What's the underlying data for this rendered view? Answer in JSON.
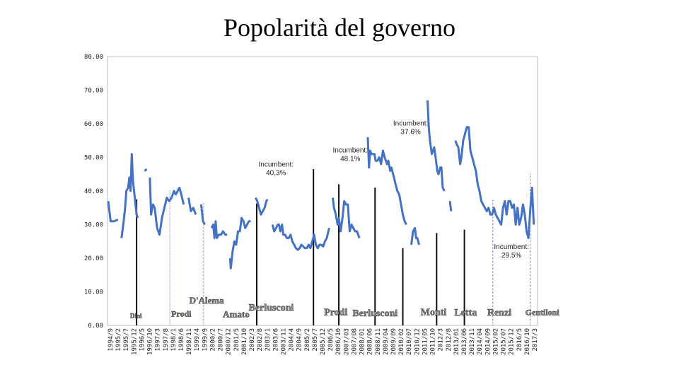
{
  "page": {
    "title": "Popolarità del governo"
  },
  "chart_data": {
    "type": "line",
    "title": "Popolarità del governo",
    "xlabel": "",
    "ylabel": "",
    "ylim": [
      0,
      80
    ],
    "yticks": [
      "0.00",
      "10.00",
      "20.00",
      "30.00",
      "40.00",
      "50.00",
      "60.00",
      "70.00",
      "80.00"
    ],
    "grid": false,
    "legend": "none",
    "color": "#4472c4",
    "x_tick_labels": [
      "1994/9",
      "1995/2",
      "1995/7",
      "1995/12",
      "1996/5",
      "1996/10",
      "1997/3",
      "1997/8",
      "1998/1",
      "1998/6",
      "1998/11",
      "1999/4",
      "1999/9",
      "2000/2",
      "2000/7",
      "2000/12",
      "2001/5",
      "2001/10",
      "2002/3",
      "2002/8",
      "2003/1",
      "2003/6",
      "2003/11",
      "2004/4",
      "2004/9",
      "2005/2",
      "2005/7",
      "2005/12",
      "2006/5",
      "2006/10",
      "2007/03",
      "2007/08",
      "2008/01",
      "2008/06",
      "2008/11",
      "2009/04",
      "2009/09",
      "2010/02",
      "2010/07",
      "2010/12",
      "2011/05",
      "2011/10",
      "2012/3",
      "2012/8",
      "2013/01",
      "2013/06",
      "2013/11",
      "2014/04",
      "2014/09",
      "2015/02",
      "2015/07",
      "2015/12",
      "2016/5",
      "2016/10",
      "2017/3"
    ],
    "series": [
      {
        "values": [
          [
            0,
            37
          ],
          [
            0.4,
            31
          ],
          [
            1,
            31
          ],
          [
            1.6,
            31.5
          ],
          [
            2,
            null
          ],
          [
            2.2,
            26
          ],
          [
            2.5,
            30
          ],
          [
            2.8,
            35
          ],
          [
            3,
            40
          ],
          [
            3.3,
            41
          ],
          [
            3.5,
            44
          ],
          [
            3.7,
            40
          ],
          [
            3.9,
            51
          ],
          [
            4.1,
            43
          ],
          [
            4.4,
            38
          ],
          [
            4.7,
            33
          ],
          [
            4.9,
            32
          ],
          [
            5,
            null
          ],
          [
            6,
            46
          ],
          [
            6.4,
            46.5
          ],
          [
            6.6,
            null
          ],
          [
            6.9,
            44
          ],
          [
            7.1,
            33
          ],
          [
            7.4,
            36
          ],
          [
            7.7,
            35
          ],
          [
            8.1,
            29
          ],
          [
            8.5,
            27
          ],
          [
            8.9,
            32
          ],
          [
            9.3,
            35
          ],
          [
            9.7,
            38
          ],
          [
            10.1,
            37
          ],
          [
            10.5,
            38
          ],
          [
            10.9,
            40
          ],
          [
            11.2,
            39
          ],
          [
            11.5,
            40
          ],
          [
            11.8,
            41
          ],
          [
            12.1,
            39
          ],
          [
            12.5,
            36
          ],
          [
            12.8,
            null
          ],
          [
            13.3,
            38
          ],
          [
            13.7,
            34
          ],
          [
            14.1,
            35
          ],
          [
            14.5,
            33
          ],
          [
            14.8,
            null
          ],
          [
            15.4,
            36
          ],
          [
            15.7,
            31
          ],
          [
            16,
            30
          ],
          [
            16.3,
            null
          ],
          [
            17.1,
            29
          ],
          [
            17.4,
            30
          ],
          [
            17.6,
            26
          ],
          [
            17.8,
            31
          ],
          [
            18,
            26
          ],
          [
            18.3,
            27
          ],
          [
            18.7,
            27
          ],
          [
            19,
            28
          ],
          [
            19.4,
            27
          ],
          [
            19.7,
            27
          ],
          [
            19.9,
            null
          ],
          [
            20.2,
            20
          ],
          [
            20.3,
            17
          ],
          [
            20.6,
            22
          ],
          [
            20.9,
            25
          ],
          [
            21.2,
            24
          ],
          [
            21.5,
            28
          ],
          [
            21.8,
            28
          ],
          [
            22.1,
            32
          ],
          [
            22.4,
            31
          ],
          [
            22.7,
            29
          ],
          [
            23,
            30
          ],
          [
            23.3,
            31
          ],
          [
            23.6,
            31
          ],
          [
            23.9,
            null
          ],
          [
            24.4,
            38
          ],
          [
            24.7,
            37
          ],
          [
            25,
            35
          ],
          [
            25.3,
            33
          ],
          [
            25.6,
            34
          ],
          [
            25.9,
            35
          ],
          [
            26.2,
            37
          ],
          [
            26.4,
            37.5
          ],
          [
            26.6,
            null
          ],
          [
            27.2,
            30
          ],
          [
            27.5,
            28
          ],
          [
            27.8,
            29
          ],
          [
            28.1,
            30
          ],
          [
            28.3,
            30
          ],
          [
            28.5,
            28
          ],
          [
            28.8,
            30
          ],
          [
            29,
            27
          ],
          [
            29.3,
            27
          ],
          [
            29.6,
            26
          ],
          [
            29.9,
            26
          ],
          [
            30.2,
            27
          ],
          [
            30.5,
            25
          ],
          [
            30.8,
            24
          ],
          [
            31.1,
            23
          ],
          [
            31.4,
            22.5
          ],
          [
            31.7,
            23
          ],
          [
            32,
            24
          ],
          [
            32.3,
            23.5
          ],
          [
            32.6,
            23
          ],
          [
            32.9,
            23
          ],
          [
            33.2,
            24
          ],
          [
            33.5,
            23
          ],
          [
            33.8,
            25
          ],
          [
            34.1,
            27
          ],
          [
            34.4,
            24
          ],
          [
            34.7,
            23
          ],
          [
            35,
            24
          ],
          [
            35.3,
            24
          ],
          [
            35.6,
            23.5
          ],
          [
            35.9,
            25
          ],
          [
            36.2,
            26
          ],
          [
            36.6,
            29
          ],
          [
            36.8,
            null
          ],
          [
            37.2,
            38
          ],
          [
            37.4,
            35
          ],
          [
            37.7,
            33
          ],
          [
            38,
            30
          ],
          [
            38.2,
            32
          ],
          [
            38.5,
            28
          ],
          [
            38.8,
            32
          ],
          [
            39.1,
            37
          ],
          [
            39.4,
            36
          ],
          [
            39.7,
            36
          ],
          [
            40,
            28
          ],
          [
            40.3,
            30
          ],
          [
            40.6,
            29
          ],
          [
            40.9,
            28
          ],
          [
            41.2,
            28
          ],
          [
            41.6,
            26
          ],
          [
            41.9,
            null
          ],
          [
            43,
            56
          ],
          [
            43.2,
            47
          ],
          [
            43.4,
            52
          ],
          [
            43.6,
            51
          ],
          [
            43.8,
            51
          ],
          [
            44.1,
            51
          ],
          [
            44.3,
            49
          ],
          [
            44.6,
            49
          ],
          [
            44.9,
            50
          ],
          [
            45.2,
            48
          ],
          [
            45.5,
            52
          ],
          [
            45.8,
            50
          ],
          [
            46,
            49
          ],
          [
            46.2,
            48
          ],
          [
            46.4,
            49
          ],
          [
            46.7,
            46
          ],
          [
            46.9,
            47
          ],
          [
            47.2,
            45
          ],
          [
            47.6,
            42
          ],
          [
            47.9,
            40
          ],
          [
            48.2,
            39
          ],
          [
            48.5,
            36
          ],
          [
            48.8,
            33
          ],
          [
            49.1,
            31
          ],
          [
            49.4,
            30
          ],
          [
            49.6,
            null
          ],
          [
            50.2,
            24
          ],
          [
            50.5,
            28
          ],
          [
            50.8,
            29
          ],
          [
            51,
            26
          ],
          [
            51.2,
            26
          ],
          [
            51.5,
            24
          ],
          [
            51.8,
            null
          ],
          [
            52.9,
            67
          ],
          [
            53.1,
            59
          ],
          [
            53.3,
            55
          ],
          [
            53.6,
            51
          ],
          [
            53.8,
            52
          ],
          [
            54,
            53
          ],
          [
            54.3,
            49
          ],
          [
            54.5,
            46
          ],
          [
            54.7,
            45
          ],
          [
            55,
            47
          ],
          [
            55.2,
            47
          ],
          [
            55.4,
            41
          ],
          [
            55.7,
            40
          ],
          [
            55.9,
            null
          ],
          [
            56.6,
            37
          ],
          [
            56.8,
            34
          ],
          [
            57,
            null
          ],
          [
            57.5,
            55
          ],
          [
            57.7,
            54
          ],
          [
            58,
            53
          ],
          [
            58.3,
            48
          ],
          [
            58.5,
            50
          ],
          [
            58.8,
            55
          ],
          [
            59.1,
            57
          ],
          [
            59.4,
            59
          ],
          [
            59.7,
            59
          ],
          [
            60,
            52
          ],
          [
            60.3,
            50
          ],
          [
            60.6,
            48
          ],
          [
            60.9,
            46
          ],
          [
            61.2,
            42
          ],
          [
            61.5,
            40
          ],
          [
            61.8,
            37
          ],
          [
            62.1,
            36
          ],
          [
            62.4,
            35
          ],
          [
            62.7,
            34
          ],
          [
            63,
            35
          ],
          [
            63.3,
            33
          ],
          [
            63.6,
            33
          ],
          [
            63.9,
            35
          ],
          [
            64.2,
            33
          ],
          [
            64.5,
            32
          ],
          [
            64.8,
            31
          ],
          [
            65.1,
            30
          ],
          [
            65.4,
            35
          ],
          [
            65.7,
            37
          ],
          [
            66,
            33
          ],
          [
            66.3,
            37
          ],
          [
            66.6,
            37
          ],
          [
            66.9,
            35
          ],
          [
            67.2,
            36
          ],
          [
            67.5,
            30
          ],
          [
            67.8,
            35
          ],
          [
            68.1,
            30
          ],
          [
            68.4,
            32
          ],
          [
            68.7,
            36
          ],
          [
            69,
            33
          ],
          [
            69.3,
            28
          ],
          [
            69.6,
            26
          ],
          [
            69.9,
            34
          ],
          [
            70.2,
            41
          ],
          [
            70.5,
            30
          ]
        ]
      }
    ],
    "annotations": [
      {
        "text_lines": [
          "Incumbent:",
          "37.6%"
        ],
        "x": 50.1,
        "y": 59.5
      },
      {
        "text_lines": [
          "Incumbent:",
          "48.1%"
        ],
        "x": 40.1,
        "y": 51.5
      },
      {
        "text_lines": [
          "Incumbent:",
          "40,3%"
        ],
        "x": 27.8,
        "y": 47.3
      },
      {
        "text_lines": [
          "Incumbent:",
          "29.5%"
        ],
        "x": 66.8,
        "y": 22.7
      }
    ],
    "government_markers": [
      {
        "x": 4.7,
        "y": 37.5,
        "style": "black"
      },
      {
        "x": 10.2,
        "y": 40.3,
        "style": "light"
      },
      {
        "x": 15.8,
        "y": 36.5,
        "style": "light"
      },
      {
        "x": 24.6,
        "y": 36.3,
        "style": "black"
      },
      {
        "x": 34,
        "y": 46.5,
        "style": "black"
      },
      {
        "x": 38.2,
        "y": 42,
        "style": "black"
      },
      {
        "x": 44.2,
        "y": 41,
        "style": "black"
      },
      {
        "x": 48.8,
        "y": 23,
        "style": "black"
      },
      {
        "x": 54.4,
        "y": 27.5,
        "style": "black"
      },
      {
        "x": 59,
        "y": 28.5,
        "style": "black"
      },
      {
        "x": 63.7,
        "y": 37.5,
        "style": "light"
      },
      {
        "x": 69.9,
        "y": 45.5,
        "style": "light"
      }
    ],
    "government_labels": [
      {
        "text": "Dini",
        "x": 4.6,
        "y": 2.2,
        "size": 9
      },
      {
        "text": "Prodi",
        "x": 12.1,
        "y": 2.6,
        "size": 12
      },
      {
        "text": "D'Alema",
        "x": 16.3,
        "y": 6.5,
        "size": 13
      },
      {
        "text": "Amato",
        "x": 21.2,
        "y": 2.4,
        "size": 13
      },
      {
        "text": "Berlusconi",
        "x": 27,
        "y": 4.4,
        "size": 14
      },
      {
        "text": "Prodi",
        "x": 37.7,
        "y": 3.1,
        "size": 14
      },
      {
        "text": "Berlusconi",
        "x": 44.2,
        "y": 2.7,
        "size": 14
      },
      {
        "text": "Monti",
        "x": 53.9,
        "y": 3.1,
        "size": 14
      },
      {
        "text": "Letta",
        "x": 59.2,
        "y": 3,
        "size": 14
      },
      {
        "text": "Renzi",
        "x": 64.8,
        "y": 2.9,
        "size": 14
      },
      {
        "text": "Gentiloni",
        "x": 71.9,
        "y": 3.1,
        "size": 12
      }
    ]
  }
}
